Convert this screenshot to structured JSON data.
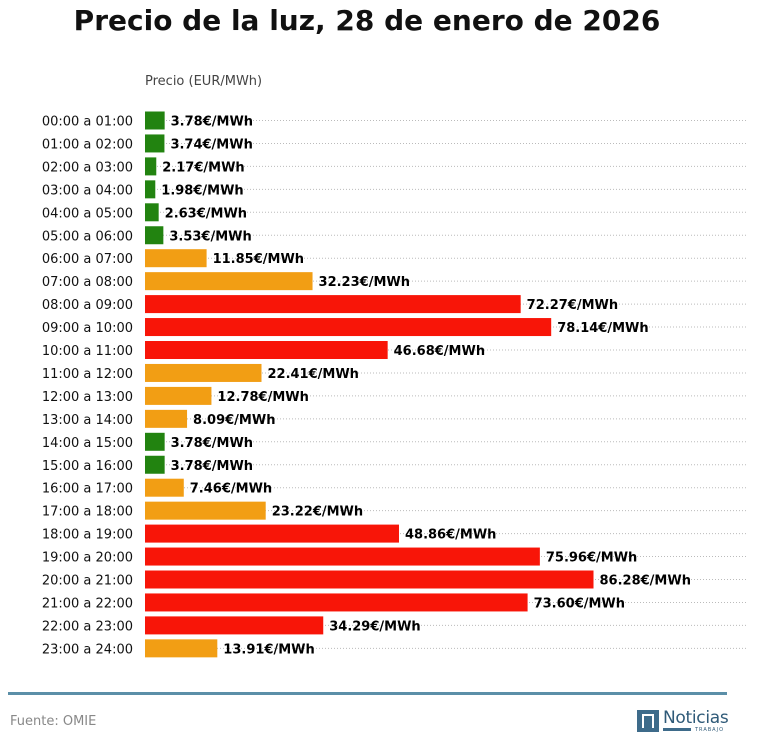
{
  "title": "Precio de la luz, 28 de enero de 2026",
  "source": "Fuente: OMIE",
  "logo": {
    "word": "Noticias",
    "sub": "TRABAJO"
  },
  "colors": {
    "low": "#228310",
    "mid": "#f29e14",
    "high": "#f81508",
    "rule": "#5b8fa8",
    "logo": "#3e6b8a"
  },
  "chart_data": {
    "type": "bar",
    "orientation": "horizontal",
    "title": "Precio de la luz, 28 de enero de 2026",
    "ylabel": "Precio (EUR/MWh)",
    "unit_suffix": "€/MWh",
    "grid": "horizontal dotted",
    "categories": [
      "00:00 a 01:00",
      "01:00 a 02:00",
      "02:00 a 03:00",
      "03:00 a 04:00",
      "04:00 a 05:00",
      "05:00 a 06:00",
      "06:00 a 07:00",
      "07:00 a 08:00",
      "08:00 a 09:00",
      "09:00 a 10:00",
      "10:00 a 11:00",
      "11:00 a 12:00",
      "12:00 a 13:00",
      "13:00 a 14:00",
      "14:00 a 15:00",
      "15:00 a 16:00",
      "16:00 a 17:00",
      "17:00 a 18:00",
      "18:00 a 19:00",
      "19:00 a 20:00",
      "20:00 a 21:00",
      "21:00 a 22:00",
      "22:00 a 23:00",
      "23:00 a 24:00"
    ],
    "values": [
      3.78,
      3.74,
      2.17,
      1.98,
      2.63,
      3.53,
      11.85,
      32.23,
      72.27,
      78.14,
      46.68,
      22.41,
      12.78,
      8.09,
      3.78,
      3.78,
      7.46,
      23.22,
      48.86,
      75.96,
      86.28,
      73.6,
      34.29,
      13.91
    ],
    "labels": [
      "3.78€/MWh",
      "3.74€/MWh",
      "2.17€/MWh",
      "1.98€/MWh",
      "2.63€/MWh",
      "3.53€/MWh",
      "11.85€/MWh",
      "32.23€/MWh",
      "72.27€/MWh",
      "78.14€/MWh",
      "46.68€/MWh",
      "22.41€/MWh",
      "12.78€/MWh",
      "8.09€/MWh",
      "3.78€/MWh",
      "3.78€/MWh",
      "7.46€/MWh",
      "23.22€/MWh",
      "48.86€/MWh",
      "75.96€/MWh",
      "86.28€/MWh",
      "73.60€/MWh",
      "34.29€/MWh",
      "13.91€/MWh"
    ],
    "levels": [
      "low",
      "low",
      "low",
      "low",
      "low",
      "low",
      "mid",
      "mid",
      "high",
      "high",
      "high",
      "mid",
      "mid",
      "mid",
      "low",
      "low",
      "mid",
      "mid",
      "high",
      "high",
      "high",
      "high",
      "high",
      "mid"
    ],
    "xlim": [
      0,
      116
    ]
  }
}
